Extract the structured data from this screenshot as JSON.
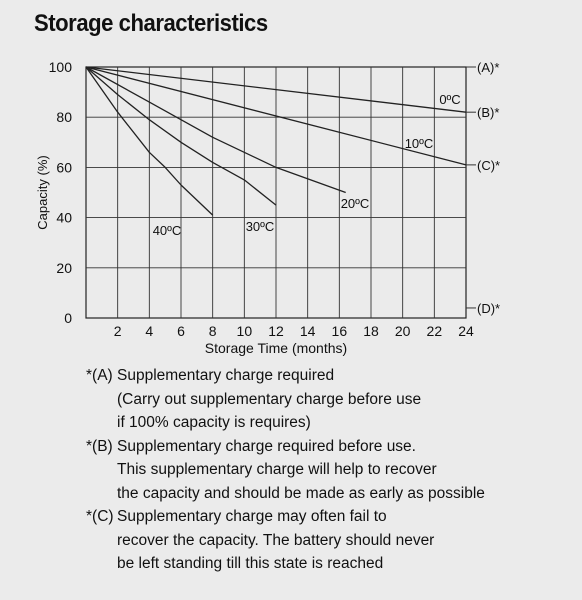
{
  "title": "Storage characteristics",
  "chart_data": {
    "type": "line",
    "xlabel": "Storage Time (months)",
    "ylabel": "Capacity (%)",
    "xlim": [
      0,
      24
    ],
    "ylim": [
      0,
      100
    ],
    "x_ticks": [
      "2",
      "4",
      "6",
      "8",
      "10",
      "12",
      "14",
      "16",
      "18",
      "20",
      "22",
      "24"
    ],
    "y_ticks": [
      "0",
      "20",
      "40",
      "60",
      "80",
      "100"
    ],
    "grid": true,
    "series": [
      {
        "name": "0ºC",
        "points": [
          [
            0,
            100
          ],
          [
            24,
            82
          ]
        ]
      },
      {
        "name": "10ºC",
        "points": [
          [
            0,
            100
          ],
          [
            24,
            61
          ]
        ]
      },
      {
        "name": "20ºC",
        "points": [
          [
            0,
            100
          ],
          [
            4,
            86
          ],
          [
            8,
            72
          ],
          [
            12,
            60
          ],
          [
            16.4,
            50
          ]
        ]
      },
      {
        "name": "30ºC",
        "points": [
          [
            0,
            100
          ],
          [
            2,
            89
          ],
          [
            4,
            79
          ],
          [
            6,
            70
          ],
          [
            8,
            62
          ],
          [
            10,
            55
          ],
          [
            12,
            45
          ]
        ]
      },
      {
        "name": "40ºC",
        "points": [
          [
            0,
            100
          ],
          [
            2,
            82
          ],
          [
            4,
            66
          ],
          [
            5,
            60
          ],
          [
            6,
            53
          ],
          [
            8,
            41
          ]
        ]
      }
    ],
    "right_markers": [
      {
        "label": "(A)*",
        "y": 100
      },
      {
        "label": "(B)*",
        "y": 82
      },
      {
        "label": "(C)*",
        "y": 61
      },
      {
        "label": "(D)*",
        "y": 4
      }
    ]
  },
  "notes": [
    {
      "key": "*(A)",
      "lines": [
        "Supplementary charge required",
        "(Carry out supplementary charge before use",
        "if 100% capacity is requires)"
      ]
    },
    {
      "key": "*(B)",
      "lines": [
        "Supplementary charge required before use.",
        "This supplementary charge will help to recover",
        "the capacity and should be made as early as possible"
      ]
    },
    {
      "key": "*(C)",
      "lines": [
        "Supplementary charge may often fail to",
        "recover the capacity. The battery should never",
        "be left standing till this state is reached"
      ]
    }
  ]
}
